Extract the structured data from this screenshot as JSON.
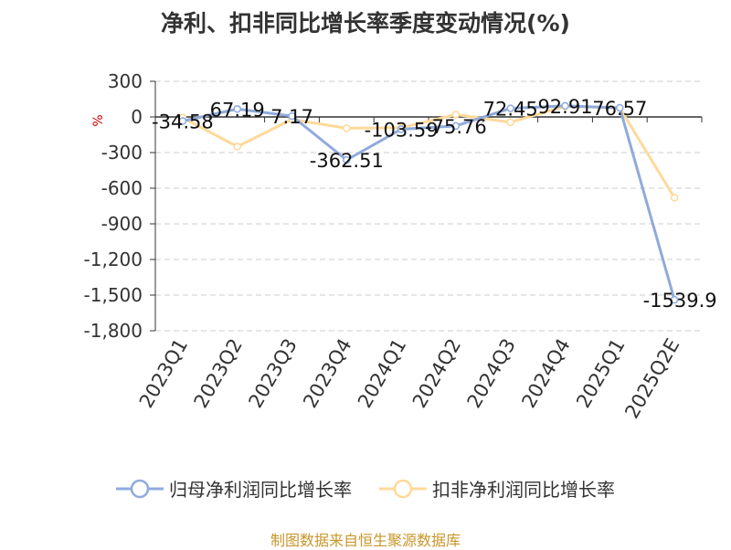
{
  "chart_data": {
    "type": "line",
    "title": "净利、扣非同比增长率季度变动情况(%)",
    "ylabel": "%",
    "xlabel": "",
    "categories": [
      "2023Q1",
      "2023Q2",
      "2023Q3",
      "2023Q4",
      "2024Q1",
      "2024Q2",
      "2024Q3",
      "2024Q4",
      "2025Q1",
      "2025Q2E"
    ],
    "ylim": [
      -1800,
      300
    ],
    "yticks": [
      300,
      0,
      -300,
      -600,
      -900,
      -1200,
      -1500,
      -1800
    ],
    "ytick_labels": [
      "300",
      "0",
      "-300",
      "-600",
      "-900",
      "-1,200",
      "-1,500",
      "-1,800"
    ],
    "grid": "horizontal dashed",
    "legend_position": "bottom",
    "series": [
      {
        "name": "归母净利润同比增长率",
        "color": "#8faadc",
        "values": [
          -34.58,
          67.19,
          7.17,
          -362.51,
          -103.59,
          -75.76,
          72.45,
          92.91,
          76.57,
          -1539.9
        ],
        "labels": [
          "-34.58",
          "67.19",
          "7.17",
          "-362.51",
          "-103.59",
          "-75.76",
          "72.45",
          "92.91",
          "76.57",
          "-1539.9"
        ]
      },
      {
        "name": "扣非净利润同比增长率",
        "color": "#ffd99a",
        "values": [
          -5,
          -250,
          -20,
          -95,
          -90,
          20,
          -45,
          90,
          75,
          -680
        ]
      }
    ]
  },
  "source": "制图数据来自恒生聚源数据库"
}
